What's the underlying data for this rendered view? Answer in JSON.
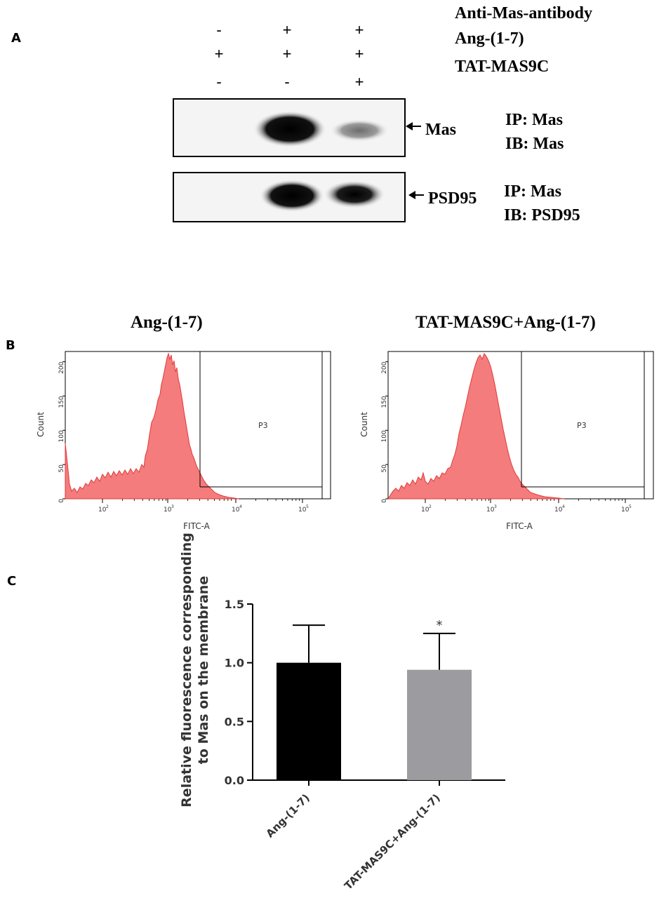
{
  "panel_a": {
    "letter": "A",
    "rows": [
      {
        "label": "Anti-Mas-antibody",
        "signs": [
          "-",
          "+",
          "+"
        ]
      },
      {
        "label": "Ang-(1-7)",
        "signs": [
          "+",
          "+",
          "+"
        ]
      },
      {
        "label": "TAT-MAS9C",
        "signs": [
          "-",
          "-",
          "+"
        ]
      }
    ],
    "blots": [
      {
        "target": "Mas",
        "ip": "IP: Mas",
        "ib": "IB: Mas"
      },
      {
        "target": "PSD95",
        "ip": "IP: Mas",
        "ib": "IB: PSD95"
      }
    ]
  },
  "panel_b": {
    "letter": "B",
    "histograms": [
      {
        "title": "Ang-(1-7)",
        "gate": "P3",
        "xlabel": "FITC-A",
        "ylabel": "Count",
        "yticks": [
          "0",
          "50",
          "100",
          "150",
          "200"
        ],
        "xticks": [
          "10",
          "10",
          "10",
          "10"
        ],
        "xexp": [
          "2",
          "3",
          "4",
          "5"
        ]
      },
      {
        "title": "TAT-MAS9C+Ang-(1-7)",
        "gate": "P3",
        "xlabel": "FITC-A",
        "ylabel": "Count",
        "yticks": [
          "0",
          "50",
          "100",
          "150",
          "200"
        ],
        "xticks": [
          "10",
          "10",
          "10",
          "10"
        ],
        "xexp": [
          "2",
          "3",
          "4",
          "5"
        ]
      }
    ]
  },
  "panel_c": {
    "letter": "C",
    "chart_data": {
      "type": "bar",
      "categories": [
        "Ang-(1-7)",
        "TAT-MAS9C+Ang-(1-7)"
      ],
      "values": [
        1.0,
        0.94
      ],
      "errors": [
        0.32,
        0.31
      ],
      "colors": [
        "#000000",
        "#9b9ba0"
      ],
      "ylabel_line1": "Relative fluorescence corresponding",
      "ylabel_line2": "to Mas on the membrane",
      "ylim": [
        0,
        1.5
      ],
      "yticks": [
        "0.0",
        "0.5",
        "1.0",
        "1.5"
      ],
      "significance": [
        "",
        "*"
      ]
    }
  }
}
